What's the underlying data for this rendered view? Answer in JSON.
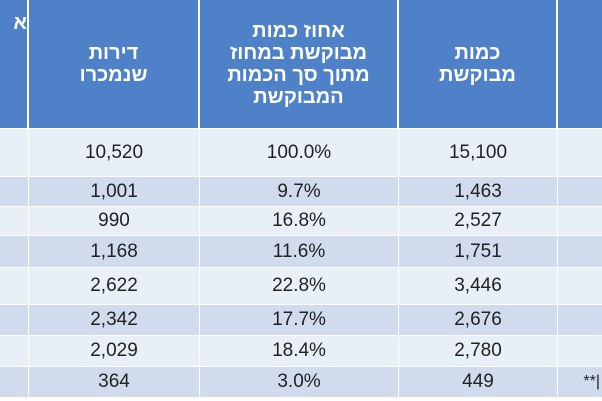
{
  "header": {
    "cut_col": "א",
    "sold_col": "דירות שנמכרו",
    "pct_col": "אחוז כמות מבוקשת במחוז מתוך סך הכמות המבוקשת",
    "qty_col": "כמות מבוקשת",
    "edge_col": ""
  },
  "rows": [
    {
      "sold": "10,520",
      "pct": "100.0%",
      "qty": "15,100",
      "edge": ""
    },
    {
      "sold": "1,001",
      "pct": "9.7%",
      "qty": "1,463",
      "edge": ""
    },
    {
      "sold": "990",
      "pct": "16.8%",
      "qty": "2,527",
      "edge": ""
    },
    {
      "sold": "1,168",
      "pct": "11.6%",
      "qty": "1,751",
      "edge": ""
    },
    {
      "sold": "2,622",
      "pct": "22.8%",
      "qty": "3,446",
      "edge": ""
    },
    {
      "sold": "2,342",
      "pct": "17.7%",
      "qty": "2,676",
      "edge": ""
    },
    {
      "sold": "2,029",
      "pct": "18.4%",
      "qty": "2,780",
      "edge": ""
    },
    {
      "sold": "364",
      "pct": "3.0%",
      "qty": "449",
      "edge": "**|"
    }
  ],
  "colors": {
    "header_bg": "#4f81c8",
    "row_dark": "#d0dcee",
    "row_light": "#e9eff7"
  }
}
